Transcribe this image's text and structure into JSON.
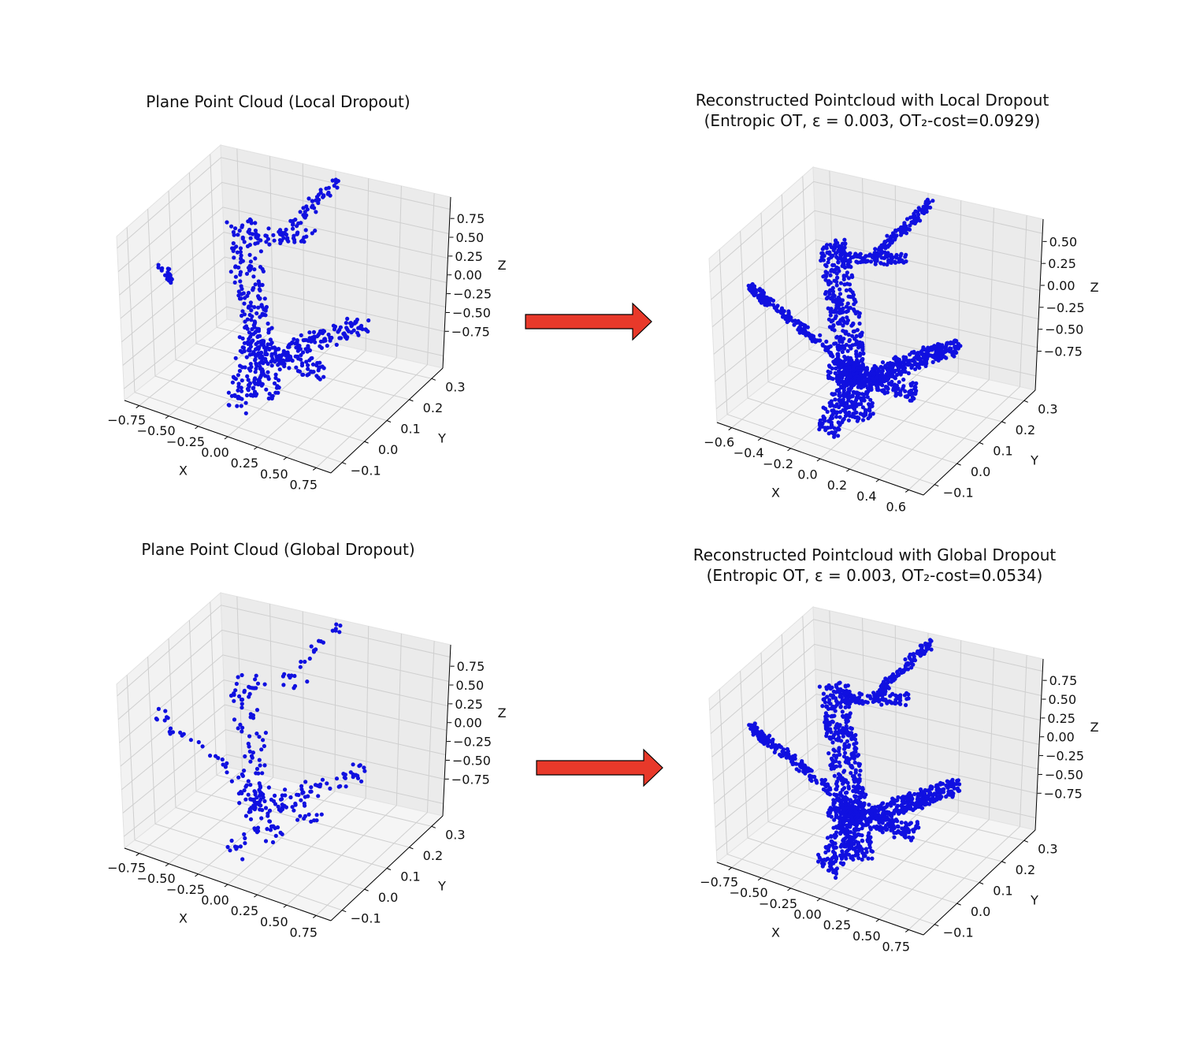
{
  "figure": {
    "panels": [
      {
        "id": "local-original",
        "title_lines": [
          "Plane Point Cloud (Local Dropout)"
        ],
        "x_ticks": [
          "−0.75",
          "−0.50",
          "−0.25",
          "0.00",
          "0.25",
          "0.50",
          "0.75"
        ],
        "y_ticks": [
          "−0.1",
          "0.0",
          "0.1",
          "0.2",
          "0.3"
        ],
        "z_ticks": [
          "0.75",
          "0.50",
          "0.25",
          "0.00",
          "−0.25",
          "−0.50",
          "−0.75"
        ],
        "xlabel": "X",
        "ylabel": "Y",
        "zlabel": "Z"
      },
      {
        "id": "local-reconstructed",
        "title_lines": [
          "Reconstructed Pointcloud with Local Dropout",
          "(Entropic OT, ε = 0.003, OT₂-cost=0.0929)"
        ],
        "x_ticks": [
          "−0.6",
          "−0.4",
          "−0.2",
          "0.0",
          "0.2",
          "0.4",
          "0.6"
        ],
        "y_ticks": [
          "−0.1",
          "0.0",
          "0.1",
          "0.2",
          "0.3"
        ],
        "z_ticks": [
          "0.50",
          "0.25",
          "0.00",
          "−0.25",
          "−0.50",
          "−0.75"
        ],
        "xlabel": "X",
        "ylabel": "Y",
        "zlabel": "Z"
      },
      {
        "id": "global-original",
        "title_lines": [
          "Plane Point Cloud (Global Dropout)"
        ],
        "x_ticks": [
          "−0.75",
          "−0.50",
          "−0.25",
          "0.00",
          "0.25",
          "0.50",
          "0.75"
        ],
        "y_ticks": [
          "−0.1",
          "0.0",
          "0.1",
          "0.2",
          "0.3"
        ],
        "z_ticks": [
          "0.75",
          "0.50",
          "0.25",
          "0.00",
          "−0.25",
          "−0.50",
          "−0.75"
        ],
        "xlabel": "X",
        "ylabel": "Y",
        "zlabel": "Z"
      },
      {
        "id": "global-reconstructed",
        "title_lines": [
          "Reconstructed Pointcloud with Global Dropout",
          "(Entropic OT, ε = 0.003, OT₂-cost=0.0534)"
        ],
        "x_ticks": [
          "−0.75",
          "−0.50",
          "−0.25",
          "0.00",
          "0.25",
          "0.50",
          "0.75"
        ],
        "y_ticks": [
          "−0.1",
          "0.0",
          "0.1",
          "0.2",
          "0.3"
        ],
        "z_ticks": [
          "0.75",
          "0.50",
          "0.25",
          "0.00",
          "−0.25",
          "−0.50",
          "−0.75"
        ],
        "xlabel": "X",
        "ylabel": "Y",
        "zlabel": "Z"
      }
    ],
    "arrow_color": "#e8392a",
    "point_color": "#1010e0"
  },
  "chart_data": [
    {
      "type": "scatter",
      "projection": "3d",
      "title": "Plane Point Cloud (Local Dropout)",
      "xlabel": "X",
      "ylabel": "Y",
      "zlabel": "Z",
      "xlim": [
        -0.75,
        0.75
      ],
      "ylim": [
        -0.1,
        0.3
      ],
      "zlim": [
        -0.75,
        0.75
      ],
      "grid": true,
      "series": [
        {
          "color": "#1010e0",
          "approx_point_count": 600
        }
      ]
    },
    {
      "type": "scatter",
      "projection": "3d",
      "title": "Reconstructed Pointcloud with Local Dropout (Entropic OT, ε = 0.003, OT₂-cost=0.0929)",
      "xlabel": "X",
      "ylabel": "Y",
      "zlabel": "Z",
      "xlim": [
        -0.6,
        0.6
      ],
      "ylim": [
        -0.1,
        0.3
      ],
      "zlim": [
        -0.75,
        0.5
      ],
      "grid": true,
      "series": [
        {
          "color": "#1010e0",
          "approx_point_count": 1500
        }
      ]
    },
    {
      "type": "scatter",
      "projection": "3d",
      "title": "Plane Point Cloud (Global Dropout)",
      "xlabel": "X",
      "ylabel": "Y",
      "zlabel": "Z",
      "xlim": [
        -0.75,
        0.75
      ],
      "ylim": [
        -0.1,
        0.3
      ],
      "zlim": [
        -0.75,
        0.75
      ],
      "grid": true,
      "series": [
        {
          "color": "#1010e0",
          "approx_point_count": 300
        }
      ]
    },
    {
      "type": "scatter",
      "projection": "3d",
      "title": "Reconstructed Pointcloud with Global Dropout (Entropic OT, ε = 0.003, OT₂-cost=0.0534)",
      "xlabel": "X",
      "ylabel": "Y",
      "zlabel": "Z",
      "xlim": [
        -0.75,
        0.75
      ],
      "ylim": [
        -0.1,
        0.3
      ],
      "zlim": [
        -0.75,
        0.75
      ],
      "grid": true,
      "series": [
        {
          "color": "#1010e0",
          "approx_point_count": 1500
        }
      ]
    }
  ]
}
